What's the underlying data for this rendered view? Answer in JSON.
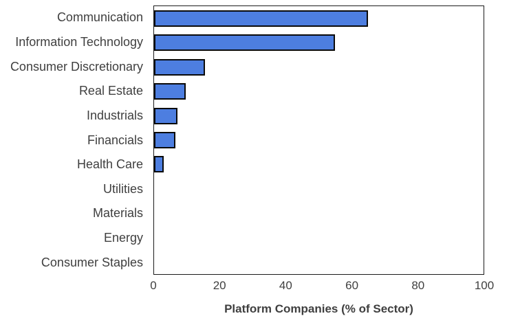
{
  "chart_data": {
    "type": "bar",
    "orientation": "horizontal",
    "categories": [
      "Communication",
      "Information Technology",
      "Consumer Discretionary",
      "Real Estate",
      "Industrials",
      "Financials",
      "Health Care",
      "Utilities",
      "Materials",
      "Energy",
      "Consumer Staples"
    ],
    "values": [
      65,
      55,
      15.5,
      9.5,
      7,
      6.5,
      3,
      0,
      0,
      0,
      0
    ],
    "xlabel": "Platform Companies (% of Sector)",
    "xlim": [
      0,
      100
    ],
    "xticks": [
      0,
      20,
      40,
      60,
      80,
      100
    ],
    "grid": false,
    "legend_position": "none",
    "colors": {
      "bar_fill": "#4d7ee0",
      "bar_border": "#0a0a0a",
      "plot_border": "#1a1a1a",
      "text": "#3f3f3f",
      "background": "#ffffff"
    }
  }
}
